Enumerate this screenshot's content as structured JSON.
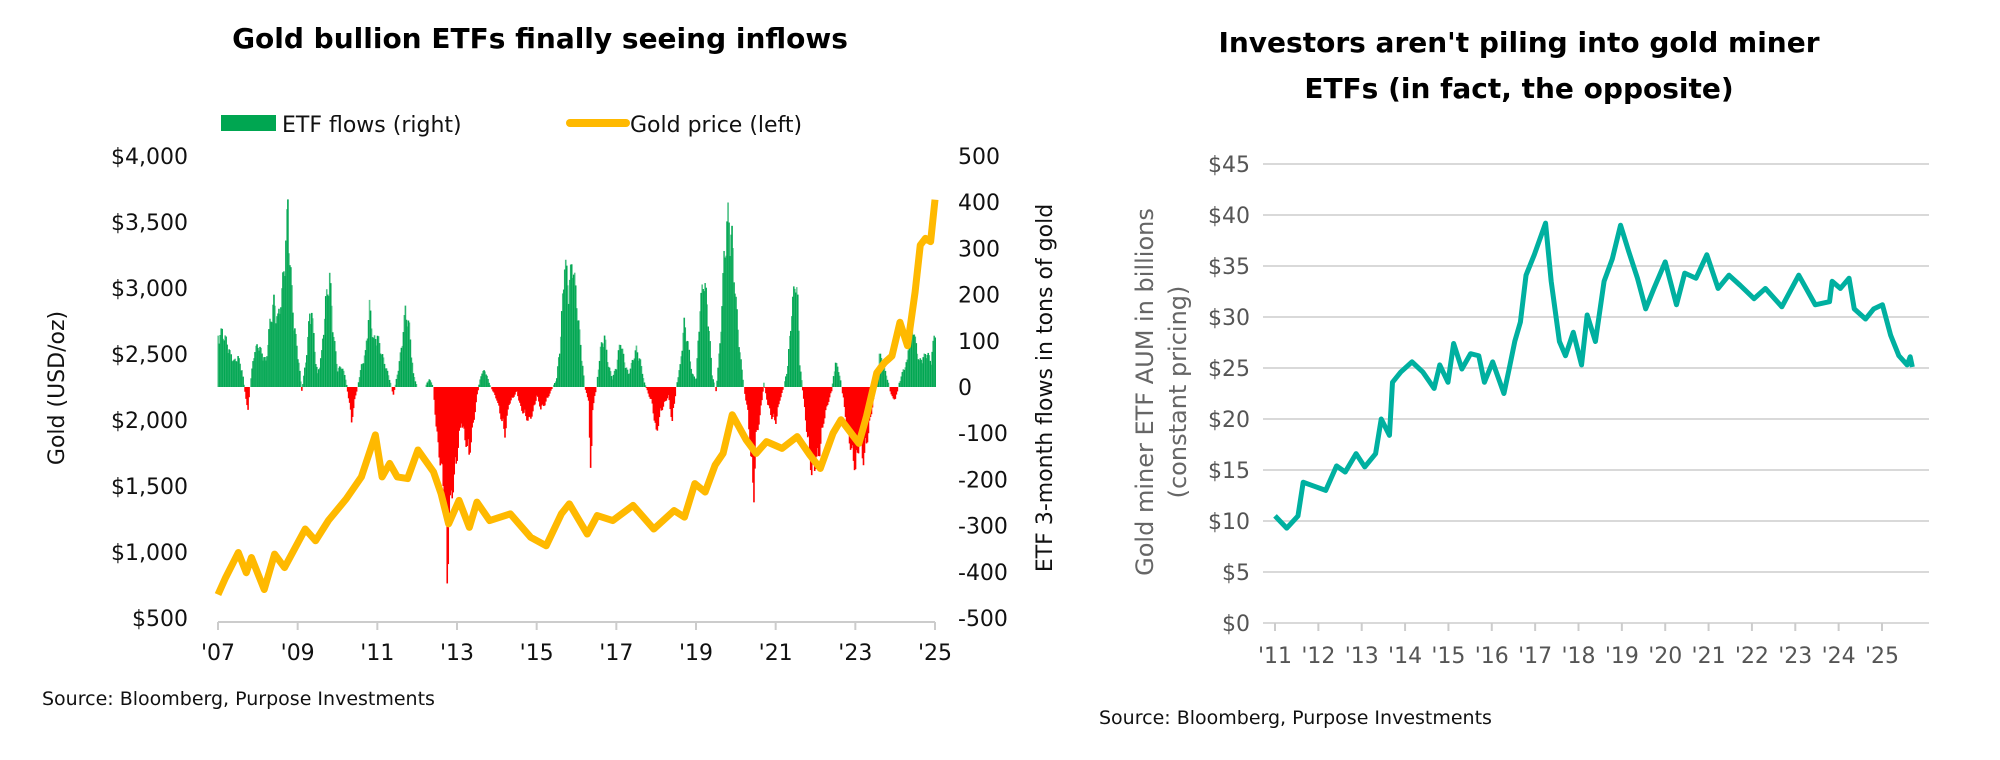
{
  "left_chart": {
    "title": "Gold bullion ETFs finally seeing inflows",
    "source": "Source: Bloomberg, Purpose Investments",
    "legend": {
      "flows": "ETF flows (right)",
      "gold": "Gold price (left)"
    },
    "colors": {
      "flows_positive": "#00a651",
      "flows_negative": "#ff0000",
      "gold": "#ffb900"
    }
  },
  "right_chart": {
    "title_line1": "Investors aren't piling into gold miner",
    "title_line2": "ETFs (in fact, the opposite)",
    "source": "Source: Bloomberg, Purpose Investments",
    "colors": {
      "line": "#00b0a0",
      "grid": "#d9d9d9"
    }
  },
  "chart_data": [
    {
      "type": "bar+line",
      "title": "Gold bullion ETFs finally seeing inflows",
      "x_tick_labels": [
        "'07",
        "'09",
        "'11",
        "'13",
        "'15",
        "'17",
        "'19",
        "'21",
        "'23",
        "'25"
      ],
      "x_ticks": [
        2007,
        2009,
        2011,
        2013,
        2015,
        2017,
        2019,
        2021,
        2023,
        2025
      ],
      "xlim": [
        2007,
        2025
      ],
      "ylabel_left": "Gold (USD/oz)",
      "ylabel_right": "ETF 3-month flows in tons of gold",
      "ylim_left": [
        500,
        4000
      ],
      "ylim_right": [
        -500,
        500
      ],
      "y_ticks_left": [
        "$500",
        "$1,000",
        "$1,500",
        "$2,000",
        "$2,500",
        "$3,000",
        "$3,500",
        "$4,000"
      ],
      "y_ticks_left_values": [
        500,
        1000,
        1500,
        2000,
        2500,
        3000,
        3500,
        4000
      ],
      "y_ticks_right": [
        "-500",
        "-400",
        "-300",
        "-200",
        "-100",
        "0",
        "100",
        "200",
        "300",
        "400",
        "500"
      ],
      "y_ticks_right_values": [
        -500,
        -400,
        -300,
        -200,
        -100,
        0,
        100,
        200,
        300,
        400,
        500
      ],
      "legend_position": "top",
      "series": [
        {
          "name": "ETF flows (right)",
          "type": "bar",
          "axis": "right",
          "x": [
            2007.0,
            2007.1,
            2007.2,
            2007.3,
            2007.4,
            2007.5,
            2007.6,
            2007.7,
            2007.75,
            2007.8,
            2007.9,
            2008.0,
            2008.1,
            2008.2,
            2008.3,
            2008.4,
            2008.5,
            2008.6,
            2008.7,
            2008.75,
            2008.8,
            2008.9,
            2009.0,
            2009.1,
            2009.2,
            2009.3,
            2009.35,
            2009.45,
            2009.5,
            2009.6,
            2009.7,
            2009.8,
            2009.9,
            2010.0,
            2010.1,
            2010.2,
            2010.3,
            2010.35,
            2010.45,
            2010.5,
            2010.6,
            2010.7,
            2010.8,
            2010.9,
            2011.0,
            2011.1,
            2011.2,
            2011.3,
            2011.4,
            2011.5,
            2011.6,
            2011.7,
            2011.8,
            2011.9,
            2012.0,
            2012.1,
            2012.2,
            2012.3,
            2012.4,
            2012.5,
            2012.6,
            2012.7,
            2012.75,
            2012.8,
            2012.9,
            2013.0,
            2013.1,
            2013.2,
            2013.3,
            2013.4,
            2013.5,
            2013.6,
            2013.7,
            2013.8,
            2013.9,
            2014.0,
            2014.1,
            2014.2,
            2014.3,
            2014.5,
            2014.6,
            2014.8,
            2014.9,
            2015.0,
            2015.1,
            2015.2,
            2015.4,
            2015.5,
            2015.6,
            2015.7,
            2015.8,
            2015.9,
            2016.0,
            2016.1,
            2016.2,
            2016.3,
            2016.35,
            2016.4,
            2016.5,
            2016.6,
            2016.7,
            2016.8,
            2016.9,
            2017.0,
            2017.1,
            2017.2,
            2017.3,
            2017.5,
            2017.6,
            2017.7,
            2017.9,
            2018.0,
            2018.1,
            2018.3,
            2018.4,
            2018.5,
            2018.6,
            2018.7,
            2018.8,
            2018.9,
            2019.0,
            2019.1,
            2019.2,
            2019.3,
            2019.4,
            2019.5,
            2019.6,
            2019.7,
            2019.8,
            2019.9,
            2020.0,
            2020.1,
            2020.2,
            2020.3,
            2020.4,
            2020.45,
            2020.5,
            2020.6,
            2020.7,
            2020.8,
            2020.9,
            2021.0,
            2021.1,
            2021.2,
            2021.3,
            2021.4,
            2021.5,
            2021.55,
            2021.6,
            2021.7,
            2021.8,
            2021.9,
            2022.0,
            2022.1,
            2022.2,
            2022.3,
            2022.4,
            2022.5,
            2022.6,
            2022.7,
            2022.8,
            2022.9,
            2023.0,
            2023.1,
            2023.2,
            2023.3,
            2023.4,
            2023.5,
            2023.6,
            2023.7,
            2023.8,
            2023.9,
            2024.0,
            2024.1,
            2024.2,
            2024.3,
            2024.4,
            2024.5,
            2024.6,
            2024.7,
            2024.8,
            2024.9,
            2025.0
          ],
          "values": [
            120,
            130,
            110,
            80,
            60,
            70,
            40,
            -30,
            -50,
            0,
            80,
            100,
            80,
            60,
            150,
            200,
            160,
            220,
            340,
            430,
            300,
            150,
            80,
            -10,
            60,
            170,
            180,
            60,
            30,
            80,
            200,
            260,
            120,
            40,
            50,
            20,
            -40,
            -80,
            -20,
            0,
            50,
            80,
            190,
            110,
            120,
            80,
            50,
            20,
            -20,
            30,
            90,
            180,
            140,
            30,
            0,
            0,
            0,
            20,
            0,
            -120,
            -190,
            -260,
            -470,
            -300,
            -230,
            -160,
            -80,
            -120,
            -160,
            -90,
            -20,
            30,
            40,
            10,
            -10,
            -30,
            -70,
            -110,
            -40,
            -10,
            -50,
            -80,
            -60,
            -20,
            -50,
            -40,
            0,
            20,
            120,
            300,
            230,
            300,
            200,
            100,
            0,
            -30,
            -220,
            -50,
            0,
            90,
            120,
            50,
            20,
            50,
            110,
            60,
            30,
            90,
            60,
            10,
            -40,
            -110,
            -60,
            -20,
            -80,
            0,
            50,
            150,
            100,
            30,
            20,
            190,
            260,
            170,
            30,
            -10,
            100,
            300,
            400,
            350,
            200,
            80,
            0,
            -60,
            -200,
            -250,
            -120,
            -70,
            10,
            -40,
            -70,
            -80,
            -30,
            0,
            50,
            180,
            260,
            200,
            60,
            -30,
            -120,
            -200,
            -180,
            -150,
            -80,
            -40,
            -10,
            60,
            30,
            -30,
            -100,
            -150,
            -190,
            -130,
            -170,
            -120,
            -60,
            0,
            80,
            50,
            20,
            -20,
            -30,
            10,
            40,
            60,
            180,
            110,
            60,
            70,
            80,
            60,
            140
          ]
        },
        {
          "name": "Gold price (left)",
          "type": "line",
          "axis": "left",
          "x": [
            2007.0,
            2007.19,
            2007.51,
            2007.71,
            2007.84,
            2008.16,
            2008.42,
            2008.67,
            2009.19,
            2009.45,
            2009.77,
            2010.22,
            2010.6,
            2010.95,
            2011.12,
            2011.31,
            2011.5,
            2011.76,
            2012.02,
            2012.41,
            2012.6,
            2012.79,
            2013.05,
            2013.31,
            2013.5,
            2013.82,
            2014.34,
            2014.85,
            2015.24,
            2015.62,
            2015.82,
            2016.27,
            2016.52,
            2016.91,
            2017.42,
            2017.94,
            2018.45,
            2018.71,
            2018.97,
            2019.23,
            2019.48,
            2019.68,
            2019.91,
            2020.26,
            2020.51,
            2020.77,
            2021.16,
            2021.54,
            2021.86,
            2022.12,
            2022.44,
            2022.64,
            2022.96,
            2023.09,
            2023.28,
            2023.54,
            2023.73,
            2023.92,
            2024.12,
            2024.31,
            2024.5,
            2024.63,
            2024.76,
            2024.89,
            2025.0
          ],
          "values": [
            678,
            805,
            996,
            843,
            958,
            716,
            984,
            882,
            1174,
            1085,
            1238,
            1403,
            1569,
            1887,
            1569,
            1671,
            1569,
            1556,
            1773,
            1607,
            1442,
            1213,
            1391,
            1187,
            1378,
            1238,
            1289,
            1111,
            1047,
            1289,
            1365,
            1136,
            1276,
            1238,
            1353,
            1174,
            1314,
            1264,
            1518,
            1454,
            1658,
            1747,
            2040,
            1849,
            1747,
            1836,
            1785,
            1874,
            1734,
            1633,
            1900,
            2002,
            1874,
            1823,
            2027,
            2358,
            2434,
            2485,
            2740,
            2562,
            2969,
            3325,
            3376,
            3351,
            3669
          ]
        }
      ]
    },
    {
      "type": "line",
      "title": "Investors aren't piling into gold miner ETFs (in fact, the opposite)",
      "ylabel_line1": "Gold miner ETF AUM in billions",
      "ylabel_line2": "(constant pricing)",
      "x_tick_labels": [
        "'11",
        "'12",
        "'13",
        "'14",
        "'15",
        "'16",
        "'17",
        "'18",
        "'19",
        "'20",
        "'21",
        "'22",
        "'23",
        "'24",
        "'25"
      ],
      "x_ticks": [
        2011,
        2012,
        2013,
        2014,
        2015,
        2016,
        2017,
        2018,
        2019,
        2020,
        2021,
        2022,
        2023,
        2024,
        2025
      ],
      "xlim": [
        2011,
        2025.7
      ],
      "ylim": [
        0,
        45
      ],
      "y_tick_labels": [
        "$0",
        "$5",
        "$10",
        "$15",
        "$20",
        "$25",
        "$30",
        "$35",
        "$40",
        "$45"
      ],
      "y_ticks": [
        0,
        5,
        10,
        15,
        20,
        25,
        30,
        35,
        40,
        45
      ],
      "grid": true,
      "series": [
        {
          "x": [
            2011.0,
            2011.27,
            2011.53,
            2011.65,
            2011.91,
            2012.17,
            2012.42,
            2012.62,
            2012.87,
            2013.07,
            2013.32,
            2013.45,
            2013.64,
            2013.71,
            2013.9,
            2014.16,
            2014.41,
            2014.67,
            2014.8,
            2014.99,
            2015.12,
            2015.31,
            2015.51,
            2015.7,
            2015.83,
            2016.02,
            2016.28,
            2016.4,
            2016.53,
            2016.66,
            2016.79,
            2016.98,
            2017.24,
            2017.37,
            2017.56,
            2017.7,
            2017.88,
            2018.07,
            2018.2,
            2018.39,
            2018.59,
            2018.78,
            2018.97,
            2019.16,
            2019.36,
            2019.55,
            2019.74,
            2020.0,
            2020.26,
            2020.45,
            2020.71,
            2020.96,
            2021.22,
            2021.47,
            2021.73,
            2022.05,
            2022.31,
            2022.69,
            2023.08,
            2023.46,
            2023.79,
            2023.85,
            2024.04,
            2024.24,
            2024.36,
            2024.62,
            2024.81,
            2025.01,
            2025.2,
            2025.39,
            2025.58,
            2025.65,
            2025.7
          ],
          "values": [
            10.5,
            9.3,
            10.5,
            13.8,
            13.4,
            13.0,
            15.4,
            14.8,
            16.6,
            15.3,
            16.6,
            20.0,
            18.4,
            23.6,
            24.6,
            25.6,
            24.6,
            23.0,
            25.3,
            23.6,
            27.4,
            24.9,
            26.4,
            26.2,
            23.6,
            25.6,
            22.5,
            24.9,
            27.6,
            29.5,
            34.1,
            36.1,
            39.2,
            33.5,
            27.6,
            26.2,
            28.5,
            25.3,
            30.2,
            27.6,
            33.5,
            35.7,
            39.0,
            36.4,
            33.8,
            30.8,
            32.8,
            35.4,
            31.2,
            34.3,
            33.8,
            36.1,
            32.8,
            34.1,
            33.1,
            31.8,
            32.8,
            31.0,
            34.1,
            31.2,
            31.5,
            33.5,
            32.8,
            33.8,
            30.8,
            29.8,
            30.8,
            31.2,
            28.2,
            26.2,
            25.3,
            26.1,
            25.1
          ]
        }
      ]
    }
  ]
}
